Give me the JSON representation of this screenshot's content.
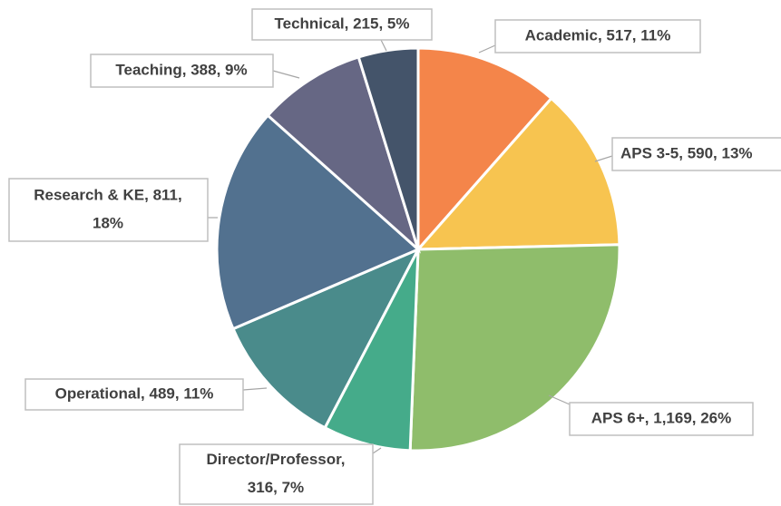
{
  "chart_data": {
    "type": "pie",
    "categories": [
      "Academic",
      "APS 3-5",
      "APS 6+",
      "Director/Professor",
      "Operational",
      "Research & KE",
      "Teaching",
      "Technical"
    ],
    "values": [
      517,
      590,
      1169,
      316,
      489,
      811,
      388,
      215
    ],
    "value_labels": [
      [
        "Academic, 517, 11%"
      ],
      [
        "APS 3-5, 590, 13%"
      ],
      [
        "APS 6+, 1,169, 26%"
      ],
      [
        "Director/Professor,",
        "316, 7%"
      ],
      [
        "Operational, 489, 11%"
      ],
      [
        "Research & KE, 811,",
        "18%"
      ],
      [
        "Teaching, 388, 9%"
      ],
      [
        "Technical, 215, 5%"
      ]
    ],
    "colors": [
      "#f4854a",
      "#f7c450",
      "#8fbd6b",
      "#45ab8a",
      "#4a8b8b",
      "#52718f",
      "#666784",
      "#44546a"
    ]
  }
}
